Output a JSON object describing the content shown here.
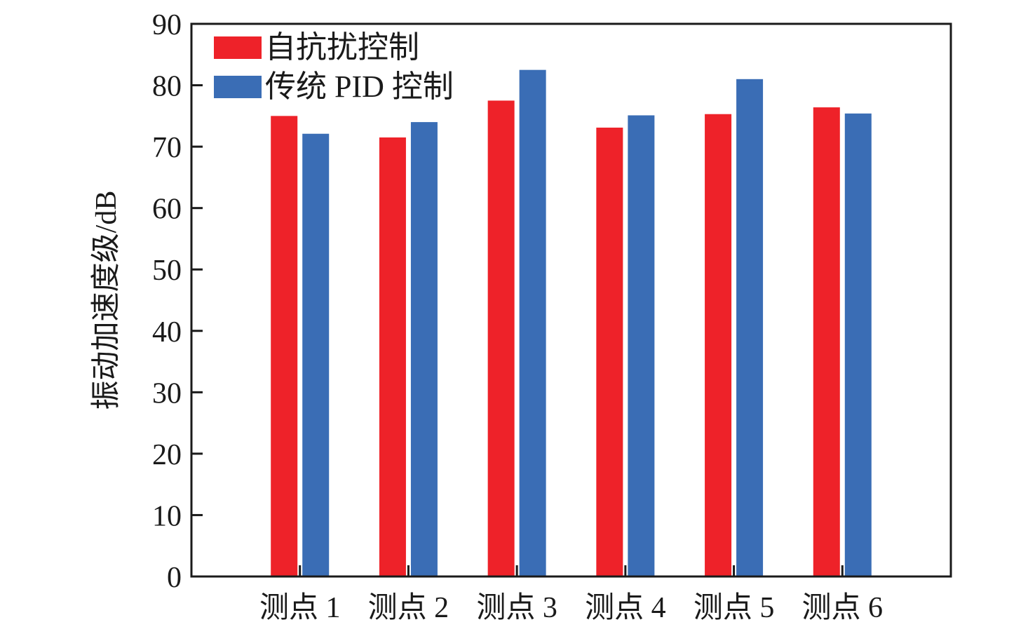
{
  "chart_data": {
    "type": "bar",
    "title": "",
    "xlabel": "",
    "ylabel": "振动加速度级/dB",
    "categories": [
      "测点 1",
      "测点 2",
      "测点 3",
      "测点 4",
      "测点 5",
      "测点 6"
    ],
    "series": [
      {
        "name": "自抗扰控制",
        "color": "#ee2229",
        "values": [
          75.0,
          71.5,
          77.5,
          73.1,
          75.3,
          76.4
        ]
      },
      {
        "name": "传统 PID 控制",
        "color": "#3a6db5",
        "values": [
          72.1,
          74.0,
          82.5,
          75.1,
          81.0,
          75.4
        ]
      }
    ],
    "ylim": [
      0,
      90
    ],
    "yticks": [
      0,
      10,
      20,
      30,
      40,
      50,
      60,
      70,
      80,
      90
    ],
    "grid": false,
    "legend_position": "top-left"
  }
}
